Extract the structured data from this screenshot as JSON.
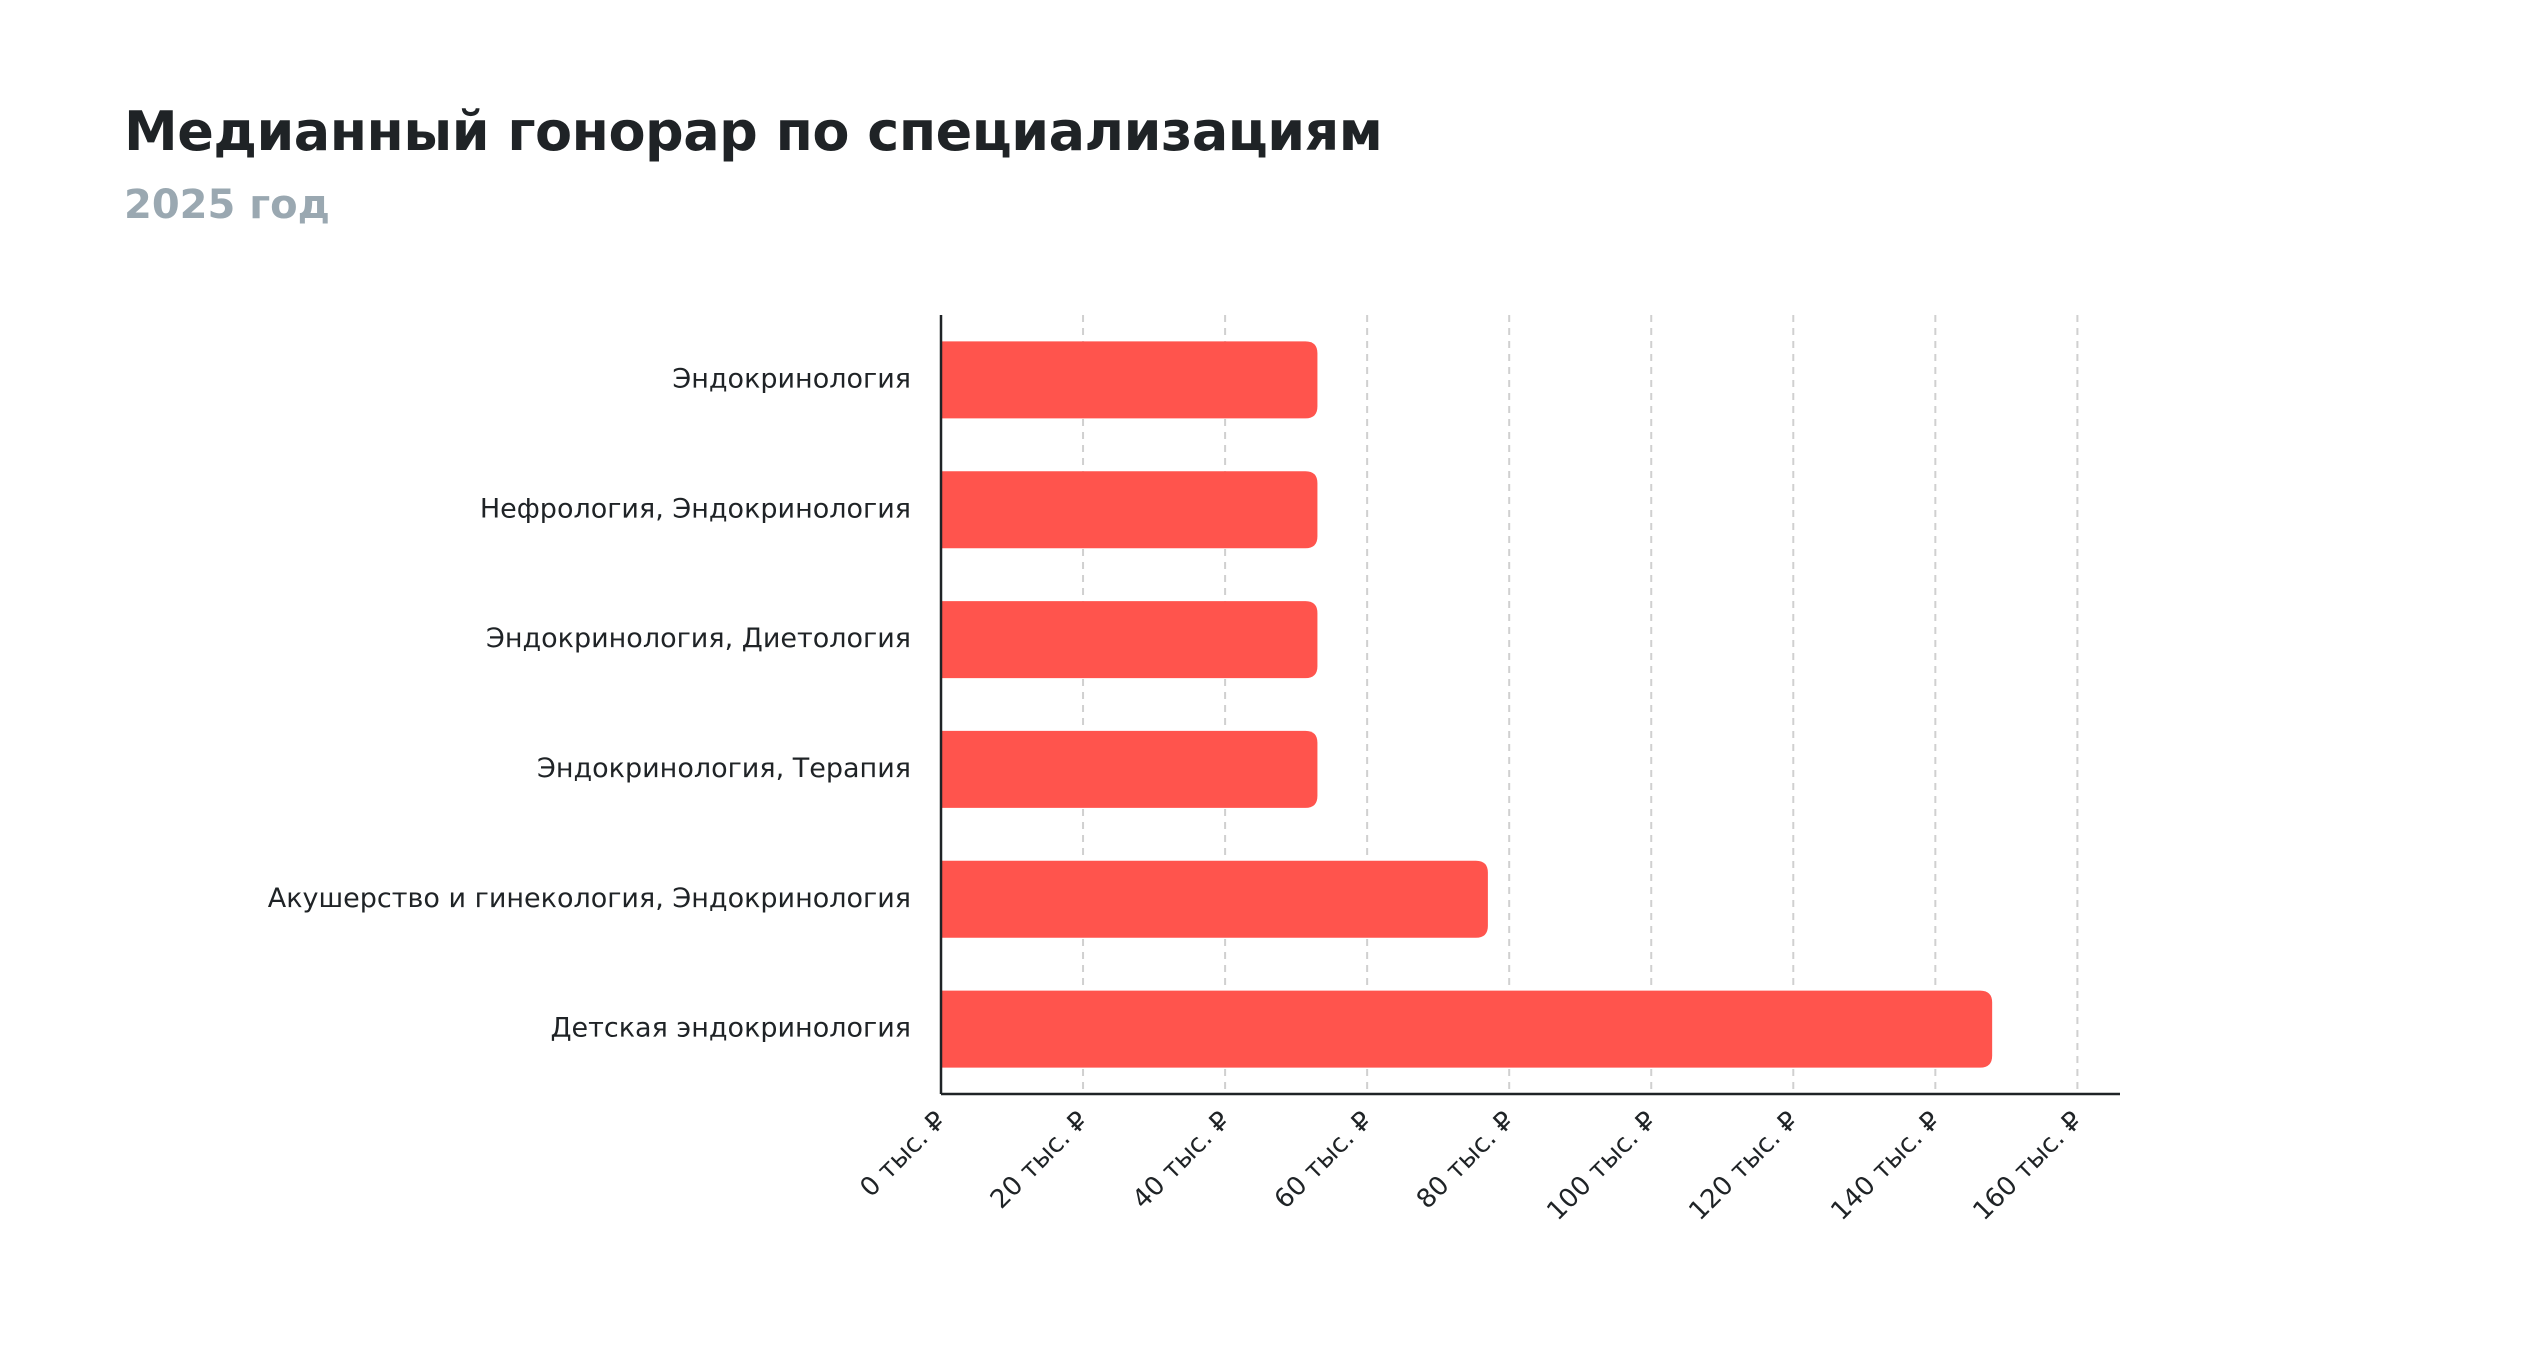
{
  "header": {
    "title": "Медианный гонорар по специализациям",
    "subtitle": "2025 год"
  },
  "colors": {
    "bar": "#ff544d",
    "axis": "#1f2326",
    "grid": "#d0d0d0",
    "title": "#1f2326",
    "subtitle": "#9aa8b1"
  },
  "chart_data": {
    "type": "bar",
    "orientation": "horizontal",
    "title": "Медианный гонорар по специализациям",
    "subtitle": "2025 год",
    "categories": [
      "Эндокринология",
      "Нефрология, Эндокринология",
      "Эндокринология, Диетология",
      "Эндокринология, Терапия",
      "Акушерство и гинекология, Эндокринология",
      "Детская эндокринология"
    ],
    "values": [
      53000,
      53000,
      53000,
      53000,
      77000,
      148000
    ],
    "xlim": [
      0,
      166000
    ],
    "xticks": [
      0,
      20000,
      40000,
      60000,
      80000,
      100000,
      120000,
      140000,
      160000
    ],
    "xtick_labels": [
      "0 тыс. ₽",
      "20 тыс. ₽",
      "40 тыс. ₽",
      "60 тыс. ₽",
      "80 тыс. ₽",
      "100 тыс. ₽",
      "120 тыс. ₽",
      "140 тыс. ₽",
      "160 тыс. ₽"
    ],
    "xlabel": "",
    "ylabel": "",
    "grid": "vertical-dashed",
    "legend": "none"
  }
}
